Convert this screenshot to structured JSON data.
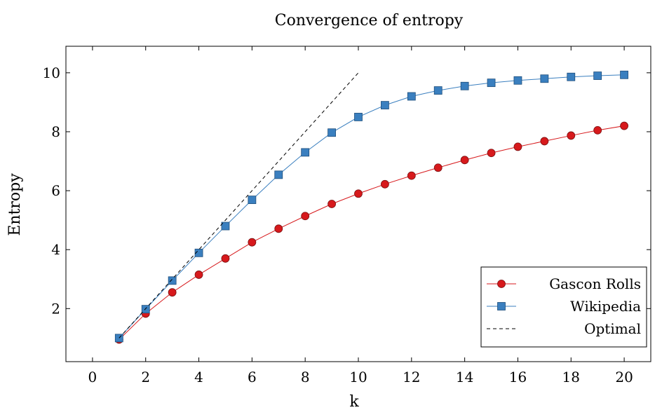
{
  "chart_data": {
    "type": "line",
    "title": "Convergence of entropy",
    "xlabel": "k",
    "ylabel": "Entropy",
    "xlim": [
      -1,
      21
    ],
    "ylim": [
      0.2,
      10.9
    ],
    "x_ticks": [
      0,
      2,
      4,
      6,
      8,
      10,
      12,
      14,
      16,
      18,
      20
    ],
    "y_ticks": [
      2,
      4,
      6,
      8,
      10
    ],
    "grid": false,
    "legend_position": "bottom-right",
    "series": [
      {
        "name": "Gascon Rolls",
        "color": "#d7191c",
        "marker": "circle",
        "line_style": "solid",
        "x": [
          1,
          2,
          3,
          4,
          5,
          6,
          7,
          8,
          9,
          10,
          11,
          12,
          13,
          14,
          15,
          16,
          17,
          18,
          19,
          20
        ],
        "y": [
          0.95,
          1.83,
          2.55,
          3.15,
          3.7,
          4.25,
          4.71,
          5.14,
          5.55,
          5.9,
          6.22,
          6.51,
          6.78,
          7.04,
          7.28,
          7.49,
          7.68,
          7.87,
          8.05,
          8.2
        ]
      },
      {
        "name": "Wikipedia",
        "color": "#3a7fbf",
        "marker": "square",
        "line_style": "solid",
        "x": [
          1,
          2,
          3,
          4,
          5,
          6,
          7,
          8,
          9,
          10,
          11,
          12,
          13,
          14,
          15,
          16,
          17,
          18,
          19,
          20
        ],
        "y": [
          1.0,
          1.98,
          2.95,
          3.89,
          4.8,
          5.69,
          6.54,
          7.3,
          7.97,
          8.5,
          8.9,
          9.2,
          9.4,
          9.55,
          9.66,
          9.74,
          9.8,
          9.86,
          9.9,
          9.93
        ]
      },
      {
        "name": "Optimal",
        "color": "#000000",
        "marker": "none",
        "line_style": "dashed",
        "x": [
          1,
          10
        ],
        "y": [
          1,
          10
        ]
      }
    ]
  }
}
